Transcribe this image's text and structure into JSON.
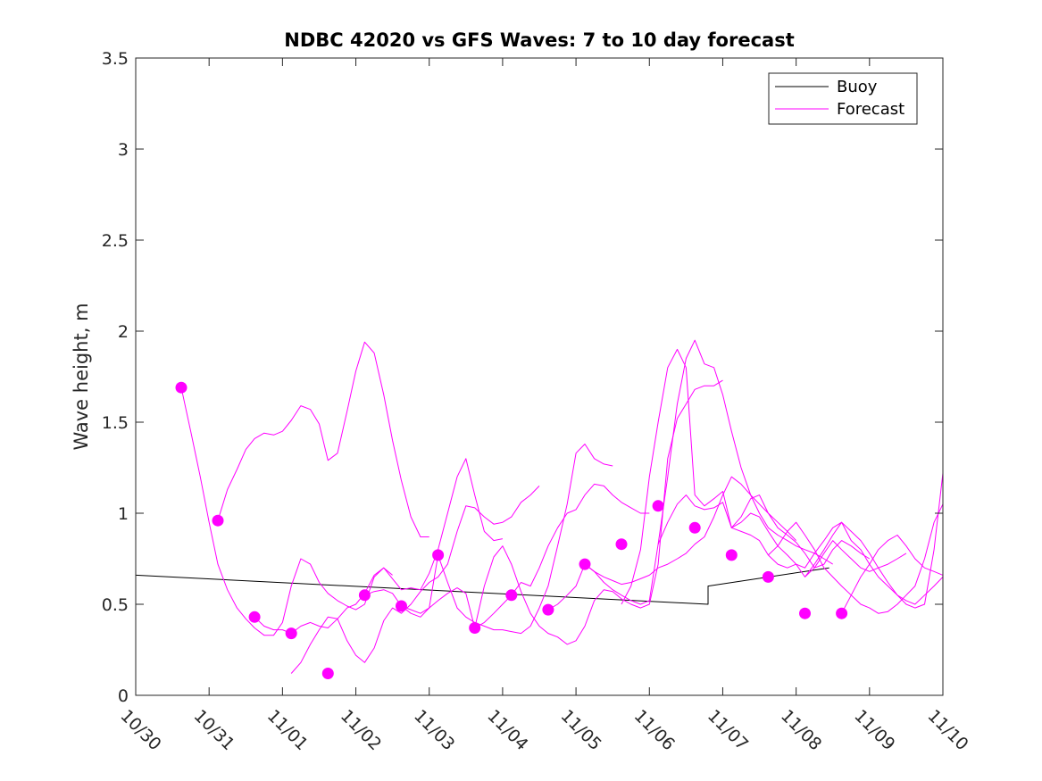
{
  "chart_data": {
    "type": "line",
    "title": "NDBC 42020 vs GFS Waves: 7 to 10 day forecast",
    "xlabel": "",
    "ylabel": "Wave height, m",
    "xlim": [
      0,
      11
    ],
    "ylim": [
      0,
      3.5
    ],
    "x_ticks": [
      0,
      1,
      2,
      3,
      4,
      5,
      6,
      7,
      8,
      9,
      10,
      11
    ],
    "x_tick_labels": [
      "10/30",
      "10/31",
      "11/01",
      "11/02",
      "11/03",
      "11/04",
      "11/05",
      "11/06",
      "11/07",
      "11/08",
      "11/09",
      "11/10"
    ],
    "y_ticks": [
      0,
      0.5,
      1,
      1.5,
      2,
      2.5,
      3,
      3.5
    ],
    "y_tick_labels": [
      "0",
      "0.5",
      "1",
      "1.5",
      "2",
      "2.5",
      "3",
      "3.5"
    ],
    "legend": {
      "placement": "top-right",
      "entries": [
        {
          "label": "Buoy",
          "color": "#000000"
        },
        {
          "label": "Forecast",
          "color": "#ff00ff"
        }
      ]
    },
    "series": [
      {
        "name": "Buoy",
        "color": "#000000",
        "x": [
          0,
          7.8,
          7.8,
          9.45
        ],
        "y": [
          0.66,
          0.5,
          0.6,
          0.7
        ]
      },
      {
        "name": "Forecast run 1",
        "color": "#ff00ff",
        "x": [
          0.62,
          0.75,
          0.88,
          1.0,
          1.12,
          1.25,
          1.38,
          1.5,
          1.62,
          1.75,
          1.88,
          2.0,
          2.12,
          2.25,
          2.38,
          2.5,
          2.62,
          2.75,
          2.88,
          3.0,
          3.12,
          3.25,
          3.38,
          3.5
        ],
        "y": [
          1.69,
          1.45,
          1.2,
          0.95,
          0.72,
          0.58,
          0.48,
          0.42,
          0.37,
          0.33,
          0.33,
          0.4,
          0.6,
          0.75,
          0.72,
          0.62,
          0.56,
          0.52,
          0.49,
          0.47,
          0.5,
          0.65,
          0.7,
          0.66
        ]
      },
      {
        "name": "Forecast run 2",
        "color": "#ff00ff",
        "x": [
          1.12,
          1.25,
          1.38,
          1.5,
          1.62,
          1.75,
          1.88,
          2.0,
          2.12,
          2.25,
          2.38,
          2.5,
          2.62,
          2.75,
          2.88,
          3.0,
          3.12,
          3.25,
          3.38,
          3.5,
          3.62,
          3.75,
          3.88,
          4.0
        ],
        "y": [
          0.96,
          1.13,
          1.24,
          1.35,
          1.41,
          1.44,
          1.43,
          1.45,
          1.51,
          1.59,
          1.57,
          1.49,
          1.29,
          1.33,
          1.56,
          1.78,
          1.94,
          1.88,
          1.65,
          1.4,
          1.18,
          0.98,
          0.87,
          0.87
        ]
      },
      {
        "name": "Forecast run 3",
        "color": "#ff00ff",
        "x": [
          1.62,
          1.75,
          1.88,
          2.0,
          2.12,
          2.25,
          2.38,
          2.5,
          2.62,
          2.75,
          2.88,
          3.0,
          3.12,
          3.25,
          3.38,
          3.5,
          3.62,
          3.75,
          3.88,
          4.0,
          4.12,
          4.25,
          4.38,
          4.5,
          4.62,
          4.75,
          4.88,
          5.0
        ],
        "y": [
          0.43,
          0.38,
          0.36,
          0.36,
          0.34,
          0.38,
          0.4,
          0.38,
          0.37,
          0.42,
          0.48,
          0.5,
          0.56,
          0.66,
          0.7,
          0.64,
          0.58,
          0.59,
          0.58,
          0.67,
          0.8,
          1.0,
          1.2,
          1.3,
          1.1,
          0.9,
          0.85,
          0.86
        ]
      },
      {
        "name": "Forecast run 4",
        "color": "#ff00ff",
        "x": [
          2.12,
          2.25,
          2.38,
          2.5,
          2.62,
          2.75,
          2.88,
          3.0,
          3.12,
          3.25,
          3.38,
          3.5,
          3.62,
          3.75,
          3.88,
          4.0,
          4.12,
          4.25,
          4.38,
          4.5,
          4.62,
          4.75,
          4.88,
          5.0,
          5.12,
          5.25,
          5.38,
          5.5
        ],
        "y": [
          0.12,
          0.18,
          0.28,
          0.36,
          0.43,
          0.42,
          0.3,
          0.22,
          0.18,
          0.26,
          0.41,
          0.48,
          0.45,
          0.5,
          0.57,
          0.62,
          0.65,
          0.72,
          0.9,
          1.04,
          1.03,
          0.98,
          0.94,
          0.95,
          0.98,
          1.06,
          1.1,
          1.15
        ]
      },
      {
        "name": "Forecast run 5",
        "color": "#ff00ff",
        "x": [
          3.12,
          3.25,
          3.38,
          3.5,
          3.62,
          3.75,
          3.88,
          4.0,
          4.12,
          4.25,
          4.38,
          4.5,
          4.62,
          4.75,
          4.88,
          5.0,
          5.12,
          5.25,
          5.38,
          5.5,
          5.62,
          5.75,
          5.88,
          6.0,
          6.12,
          6.25,
          6.38,
          6.5
        ],
        "y": [
          0.55,
          0.57,
          0.58,
          0.56,
          0.49,
          0.45,
          0.43,
          0.48,
          0.77,
          0.62,
          0.48,
          0.43,
          0.4,
          0.38,
          0.36,
          0.36,
          0.35,
          0.34,
          0.38,
          0.48,
          0.6,
          0.82,
          1.05,
          1.33,
          1.38,
          1.3,
          1.27,
          1.26
        ]
      },
      {
        "name": "Forecast run 6",
        "color": "#ff00ff",
        "x": [
          3.62,
          3.75,
          3.88,
          4.0,
          4.12,
          4.25,
          4.38,
          4.5,
          4.62,
          4.75,
          4.88,
          5.0,
          5.12,
          5.25,
          5.38,
          5.5,
          5.62,
          5.75,
          5.88,
          6.0,
          6.12,
          6.25,
          6.38,
          6.5,
          6.62,
          6.75,
          6.88,
          7.0
        ],
        "y": [
          0.49,
          0.47,
          0.45,
          0.48,
          0.52,
          0.56,
          0.59,
          0.56,
          0.37,
          0.4,
          0.45,
          0.5,
          0.55,
          0.62,
          0.6,
          0.7,
          0.82,
          0.92,
          1.0,
          1.02,
          1.1,
          1.16,
          1.15,
          1.1,
          1.06,
          1.03,
          1.0,
          1.0
        ]
      },
      {
        "name": "Forecast run 7",
        "color": "#ff00ff",
        "x": [
          4.62,
          4.75,
          4.88,
          5.0,
          5.12,
          5.25,
          5.38,
          5.5,
          5.62,
          5.75,
          5.88,
          6.0,
          6.12,
          6.25,
          6.38,
          6.5,
          6.62,
          6.75,
          6.88,
          7.0,
          7.12,
          7.25,
          7.38,
          7.5,
          7.62,
          7.75,
          7.88,
          8.0
        ],
        "y": [
          0.37,
          0.6,
          0.76,
          0.82,
          0.72,
          0.57,
          0.45,
          0.38,
          0.34,
          0.32,
          0.28,
          0.3,
          0.38,
          0.52,
          0.58,
          0.57,
          0.53,
          0.5,
          0.48,
          0.5,
          0.72,
          1.3,
          1.52,
          1.6,
          1.68,
          1.7,
          1.7,
          1.73
        ]
      },
      {
        "name": "Forecast run 8",
        "color": "#ff00ff",
        "x": [
          5.62,
          5.75,
          5.88,
          6.0,
          6.12,
          6.25,
          6.38,
          6.5,
          6.62,
          6.75,
          6.88,
          7.0,
          7.12,
          7.25,
          7.38,
          7.5,
          7.62,
          7.75,
          7.88,
          8.0,
          8.12,
          8.25,
          8.38,
          8.5,
          8.62,
          8.75,
          8.88,
          9.0
        ],
        "y": [
          0.47,
          0.5,
          0.55,
          0.6,
          0.72,
          0.68,
          0.65,
          0.63,
          0.61,
          0.62,
          0.64,
          0.66,
          0.7,
          0.72,
          0.75,
          0.78,
          0.83,
          0.87,
          0.98,
          1.1,
          1.2,
          1.16,
          1.1,
          1.05,
          1.0,
          0.95,
          0.9,
          0.85
        ]
      },
      {
        "name": "Forecast run 9",
        "color": "#ff00ff",
        "x": [
          6.12,
          6.25,
          6.38,
          6.5,
          6.62,
          6.75,
          6.88,
          7.0,
          7.12,
          7.25,
          7.38,
          7.5,
          7.62,
          7.75,
          7.88,
          8.0,
          8.12,
          8.25,
          8.38,
          8.5,
          8.62,
          8.75,
          8.88,
          9.0,
          9.12,
          9.25,
          9.38,
          9.5
        ],
        "y": [
          0.72,
          0.68,
          0.62,
          0.58,
          0.55,
          0.52,
          0.5,
          0.52,
          0.83,
          1.2,
          1.6,
          1.85,
          1.95,
          1.82,
          1.8,
          1.65,
          1.45,
          1.25,
          1.1,
          1.0,
          0.92,
          0.88,
          0.85,
          0.82,
          0.8,
          0.78,
          0.75,
          0.72
        ]
      },
      {
        "name": "Forecast run 10",
        "color": "#ff00ff",
        "x": [
          6.62,
          6.75,
          6.88,
          7.0,
          7.12,
          7.25,
          7.38,
          7.5,
          7.62,
          7.75,
          7.88,
          8.0,
          8.12,
          8.25,
          8.38,
          8.5,
          8.62,
          8.75,
          8.88,
          9.0,
          9.12,
          9.25,
          9.38,
          9.5,
          9.62,
          9.75,
          9.88,
          10.0
        ],
        "y": [
          0.5,
          0.6,
          0.8,
          1.2,
          1.5,
          1.8,
          1.9,
          1.8,
          1.1,
          1.04,
          1.08,
          1.12,
          0.92,
          0.98,
          1.08,
          1.1,
          1.0,
          0.92,
          0.88,
          0.84,
          0.78,
          0.7,
          0.72,
          0.8,
          0.85,
          0.82,
          0.78,
          0.75
        ]
      },
      {
        "name": "Forecast run 11",
        "color": "#ff00ff",
        "x": [
          7.12,
          7.25,
          7.38,
          7.5,
          7.62,
          7.75,
          7.88,
          8.0,
          8.12,
          8.25,
          8.38,
          8.5,
          8.62,
          8.75,
          8.88,
          9.0,
          9.12,
          9.25,
          9.38,
          9.5,
          9.62,
          9.75,
          9.88,
          10.0,
          10.12,
          10.25,
          10.38,
          10.5
        ],
        "y": [
          0.83,
          0.95,
          1.05,
          1.1,
          1.04,
          1.02,
          1.03,
          1.06,
          0.92,
          0.9,
          0.88,
          0.85,
          0.77,
          0.72,
          0.7,
          0.72,
          0.65,
          0.7,
          0.78,
          0.85,
          0.8,
          0.75,
          0.7,
          0.68,
          0.7,
          0.72,
          0.75,
          0.78
        ]
      },
      {
        "name": "Forecast run 12",
        "color": "#ff00ff",
        "x": [
          8.12,
          8.25,
          8.38,
          8.5,
          8.62,
          8.75,
          8.88,
          9.0,
          9.12,
          9.25,
          9.38,
          9.5,
          9.62,
          9.75,
          9.88,
          10.0,
          10.12,
          10.25,
          10.38,
          10.5,
          10.62,
          10.75,
          10.88,
          11.0
        ],
        "y": [
          0.92,
          0.95,
          1.0,
          0.98,
          0.9,
          0.82,
          0.77,
          0.72,
          0.7,
          0.78,
          0.85,
          0.92,
          0.95,
          0.85,
          0.8,
          0.72,
          0.65,
          0.6,
          0.55,
          0.52,
          0.5,
          0.55,
          0.6,
          0.65
        ]
      },
      {
        "name": "Forecast run 13",
        "color": "#ff00ff",
        "x": [
          8.62,
          8.75,
          8.88,
          9.0,
          9.12,
          9.25,
          9.38,
          9.5,
          9.62,
          9.75,
          9.88,
          10.0,
          10.12,
          10.25,
          10.38,
          10.5,
          10.62,
          10.75,
          10.88,
          11.0
        ],
        "y": [
          0.77,
          0.82,
          0.9,
          0.95,
          0.88,
          0.8,
          0.7,
          0.65,
          0.6,
          0.55,
          0.5,
          0.48,
          0.45,
          0.46,
          0.5,
          0.55,
          0.6,
          0.75,
          0.95,
          1.05
        ]
      },
      {
        "name": "Forecast run 14",
        "color": "#ff00ff",
        "x": [
          9.12,
          9.25,
          9.38,
          9.5,
          9.62,
          9.75,
          9.88,
          10.0,
          10.12,
          10.25,
          10.38,
          10.5,
          10.62,
          10.75,
          10.88,
          11.0
        ],
        "y": [
          0.65,
          0.72,
          0.8,
          0.88,
          0.95,
          0.9,
          0.85,
          0.78,
          0.7,
          0.62,
          0.55,
          0.5,
          0.48,
          0.5,
          0.8,
          1.22
        ]
      },
      {
        "name": "Forecast run 15",
        "color": "#ff00ff",
        "x": [
          9.62,
          9.75,
          9.88,
          10.0,
          10.12,
          10.25,
          10.38,
          10.5,
          10.62,
          10.75,
          10.88,
          11.0
        ],
        "y": [
          0.45,
          0.55,
          0.65,
          0.72,
          0.8,
          0.85,
          0.88,
          0.82,
          0.75,
          0.7,
          0.68,
          0.66
        ]
      }
    ],
    "markers": {
      "name": "Forecast start points",
      "color": "#ff00ff",
      "x": [
        0.62,
        1.12,
        1.62,
        2.12,
        2.62,
        3.12,
        3.62,
        4.12,
        4.62,
        5.12,
        5.62,
        6.12,
        6.62,
        7.12,
        7.62,
        8.12,
        8.62,
        9.12,
        9.62
      ],
      "y": [
        1.69,
        0.96,
        0.43,
        0.34,
        0.12,
        0.55,
        0.49,
        0.77,
        0.37,
        0.55,
        0.47,
        0.72,
        0.83,
        1.04,
        0.92,
        0.77,
        0.65,
        0.45,
        0.45
      ]
    }
  }
}
